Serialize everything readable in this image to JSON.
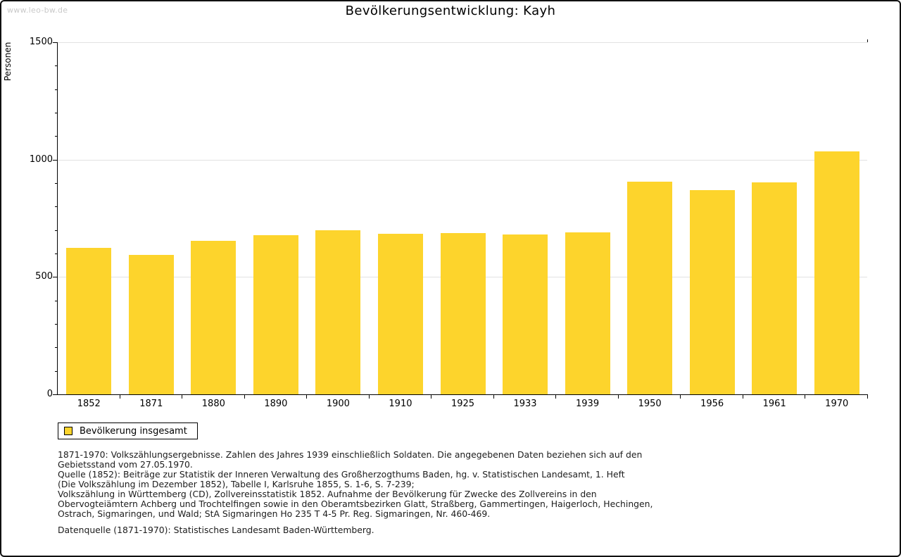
{
  "page": {
    "watermark": "www.leo-bw.de",
    "title": "Bevölkerungsentwicklung: Kayh"
  },
  "chart_data": {
    "type": "bar",
    "title": "Bevölkerungsentwicklung: Kayh",
    "xlabel": "",
    "ylabel": "Personen",
    "categories": [
      "1852",
      "1871",
      "1880",
      "1890",
      "1900",
      "1910",
      "1925",
      "1933",
      "1939",
      "1950",
      "1956",
      "1961",
      "1970"
    ],
    "values": [
      625,
      595,
      653,
      678,
      698,
      684,
      687,
      680,
      691,
      906,
      869,
      903,
      1034
    ],
    "ylim": [
      0,
      1500
    ],
    "ytick_major_step": 500,
    "ytick_minor_step": 100,
    "ytick_labels": [
      "0",
      "500",
      "1000",
      "1500"
    ],
    "grid": "horizontal-major",
    "bar_color": "#fdd42c",
    "grid_color": "#e2e2e2",
    "legend": {
      "position": "bottom-left",
      "entries": [
        {
          "label": "Bevölkerung insgesamt",
          "color": "#fdd42c"
        }
      ]
    }
  },
  "footnotes": {
    "lines": [
      "1871-1970: Volkszählungsergebnisse. Zahlen des Jahres 1939 einschließlich Soldaten. Die angegebenen Daten beziehen sich auf den",
      "Gebietsstand vom 27.05.1970.",
      "Quelle (1852): Beiträge zur Statistik der Inneren Verwaltung des Großherzogthums Baden, hg. v. Statistischen Landesamt, 1. Heft",
      "(Die Volkszählung im Dezember 1852), Tabelle I, Karlsruhe 1855, S. 1-6, S. 7-239;",
      "Volkszählung in Württemberg (CD), Zollvereinsstatistik 1852. Aufnahme der Bevölkerung für Zwecke des Zollvereins in den",
      "Obervogteiämtern Achberg und Trochtelfingen sowie in den Oberamtsbezirken Glatt, Straßberg, Gammertingen, Haigerloch, Hechingen,",
      "Ostrach, Sigmaringen, und Wald; StA Sigmaringen Ho 235 T 4-5 Pr. Reg. Sigmaringen, Nr. 460-469."
    ],
    "datasource": "Datenquelle (1871-1970): Statistisches Landesamt Baden-Württemberg."
  }
}
